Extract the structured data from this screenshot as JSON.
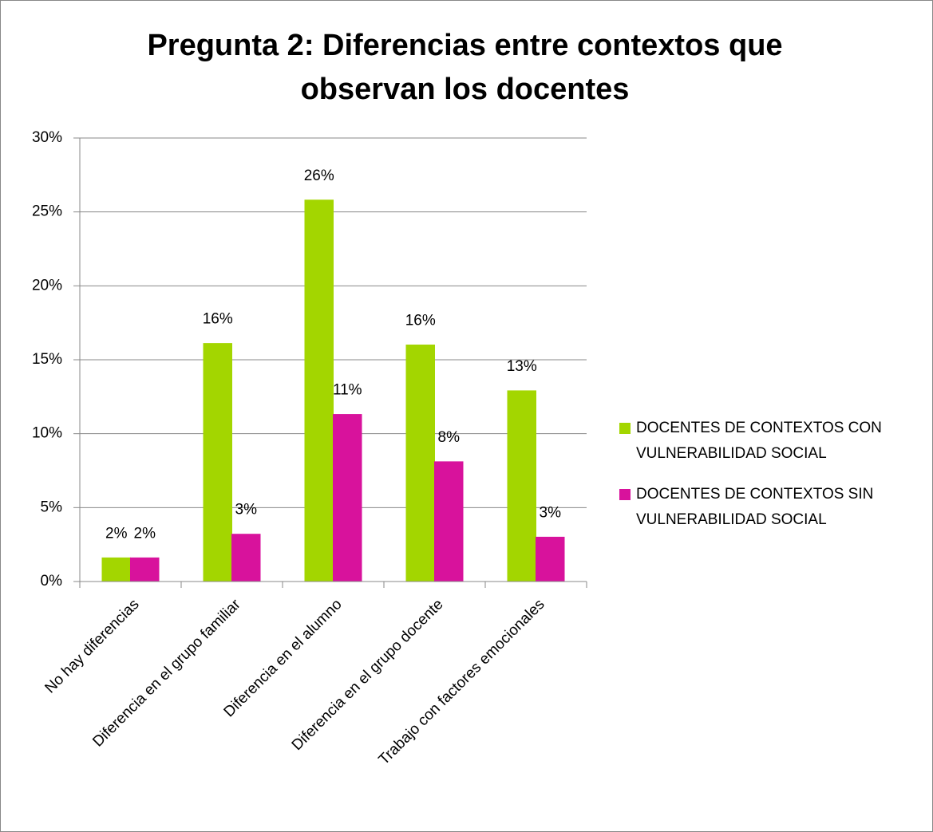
{
  "chart_data": {
    "type": "bar",
    "title": "Pregunta 2: Diferencias entre contextos que observan los docentes",
    "categories": [
      "No hay diferencias",
      "Diferencia en el grupo familiar",
      "Diferencia en el alumno",
      "Diferencia en el grupo docente",
      "Trabajo con factores emocionales"
    ],
    "series": [
      {
        "name": "DOCENTES DE CONTEXTOS CON VULNERABILIDAD SOCIAL",
        "color": "#a3d600",
        "values": [
          1.6,
          16.1,
          25.8,
          16.0,
          12.9
        ],
        "value_labels": [
          "2%",
          "16%",
          "26%",
          "16%",
          "13%"
        ]
      },
      {
        "name": "DOCENTES DE CONTEXTOS SIN VULNERABILIDAD SOCIAL",
        "color": "#d8129c",
        "values": [
          1.6,
          3.2,
          11.3,
          8.1,
          3.0
        ],
        "value_labels": [
          "2%",
          "3%",
          "11%",
          "8%",
          "3%"
        ]
      }
    ],
    "ylim": [
      0,
      30
    ],
    "yticks": [
      {
        "value": 0,
        "label": "0%"
      },
      {
        "value": 5,
        "label": "5%"
      },
      {
        "value": 10,
        "label": "10%"
      },
      {
        "value": 15,
        "label": "15%"
      },
      {
        "value": 20,
        "label": "20%"
      },
      {
        "value": 25,
        "label": "25%"
      },
      {
        "value": 30,
        "label": "30%"
      }
    ],
    "grid": true,
    "legend": "right"
  }
}
